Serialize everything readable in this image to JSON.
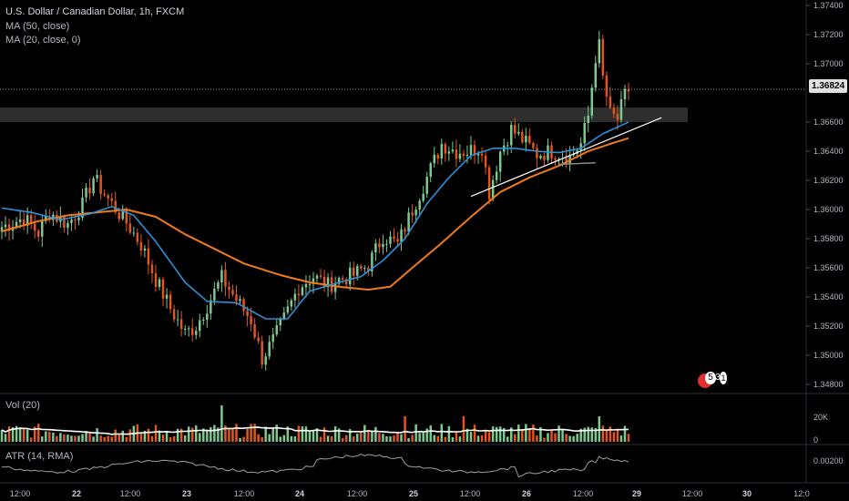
{
  "legend": {
    "title": "U.S. Dollar / Canadian Dollar, 1h, FXCM",
    "ma50": "MA (50, close)",
    "ma20": "MA (20, close, 0)",
    "vol": "Vol (20)",
    "atr": "ATR (14, RMA)"
  },
  "current_price": "1.36824",
  "events_badge": {
    "a": "5",
    "b": "3",
    "c": "1"
  },
  "colors": {
    "up": "#7ec98f",
    "down": "#e5561e",
    "ma20": "#2f8fd8",
    "ma50": "#ef7a18",
    "volume_ma": "#ffffff",
    "atr": "#a0a0a0",
    "zone": "#3a3a3a"
  },
  "chart_data": {
    "type": "candlestick",
    "symbol": "U.S. Dollar / Canadian Dollar",
    "interval": "1h",
    "source": "FXCM",
    "price_ticks": [
      "1.37400",
      "1.37200",
      "1.37000",
      "1.36600",
      "1.36400",
      "1.36200",
      "1.36000",
      "1.35800",
      "1.35600",
      "1.35400",
      "1.35200",
      "1.35000",
      "1.34800"
    ],
    "ylim": [
      1.347,
      1.3745
    ],
    "volume_ticks": [
      "20K",
      "0"
    ],
    "atr_ticks": [
      "0.00200"
    ],
    "x_ticks": [
      {
        "label": "12:00",
        "bold": false
      },
      {
        "label": "22",
        "bold": true
      },
      {
        "label": "12:00",
        "bold": false
      },
      {
        "label": "23",
        "bold": true
      },
      {
        "label": "12:00",
        "bold": false
      },
      {
        "label": "24",
        "bold": true
      },
      {
        "label": "12:00",
        "bold": false
      },
      {
        "label": "25",
        "bold": true
      },
      {
        "label": "12:00",
        "bold": false
      },
      {
        "label": "26",
        "bold": true
      },
      {
        "label": "12:00",
        "bold": false
      },
      {
        "label": "29",
        "bold": true
      },
      {
        "label": "12:00",
        "bold": false
      },
      {
        "label": "30",
        "bold": true
      },
      {
        "label": "12:0",
        "bold": false
      }
    ],
    "close_keypoints": [
      [
        0,
        1.3588
      ],
      [
        6,
        1.3594
      ],
      [
        10,
        1.3584
      ],
      [
        13,
        1.3598
      ],
      [
        18,
        1.359
      ],
      [
        22,
        1.3603
      ],
      [
        25,
        1.3622
      ],
      [
        29,
        1.3607
      ],
      [
        34,
        1.3591
      ],
      [
        38,
        1.3576
      ],
      [
        42,
        1.3552
      ],
      [
        46,
        1.3532
      ],
      [
        50,
        1.3515
      ],
      [
        53,
        1.352
      ],
      [
        56,
        1.3534
      ],
      [
        60,
        1.3553
      ],
      [
        64,
        1.3538
      ],
      [
        68,
        1.3524
      ],
      [
        71,
        1.3498
      ],
      [
        74,
        1.351
      ],
      [
        77,
        1.3525
      ],
      [
        81,
        1.3547
      ],
      [
        85,
        1.3554
      ],
      [
        89,
        1.3548
      ],
      [
        92,
        1.3552
      ],
      [
        96,
        1.3555
      ],
      [
        100,
        1.3562
      ],
      [
        104,
        1.3582
      ],
      [
        108,
        1.3576
      ],
      [
        112,
        1.36
      ],
      [
        116,
        1.3622
      ],
      [
        120,
        1.3645
      ],
      [
        124,
        1.364
      ],
      [
        127,
        1.364
      ],
      [
        131,
        1.3643
      ],
      [
        133,
        1.3612
      ],
      [
        136,
        1.364
      ],
      [
        139,
        1.3655
      ],
      [
        142,
        1.3648
      ],
      [
        146,
        1.3638
      ],
      [
        150,
        1.364
      ],
      [
        155,
        1.3636
      ],
      [
        158,
        1.3645
      ],
      [
        160,
        1.3664
      ],
      [
        162,
        1.3705
      ],
      [
        163,
        1.3712
      ],
      [
        164,
        1.369
      ],
      [
        166,
        1.3665
      ],
      [
        168,
        1.3662
      ],
      [
        170,
        1.3678
      ],
      [
        171,
        1.3682
      ]
    ],
    "ma20_keypoints": [
      [
        0,
        1.3601
      ],
      [
        8,
        1.3598
      ],
      [
        16,
        1.3593
      ],
      [
        24,
        1.3597
      ],
      [
        30,
        1.3602
      ],
      [
        36,
        1.3596
      ],
      [
        42,
        1.3578
      ],
      [
        50,
        1.355
      ],
      [
        56,
        1.3537
      ],
      [
        64,
        1.3536
      ],
      [
        72,
        1.3525
      ],
      [
        78,
        1.3525
      ],
      [
        84,
        1.3544
      ],
      [
        92,
        1.355
      ],
      [
        98,
        1.3554
      ],
      [
        104,
        1.3565
      ],
      [
        110,
        1.358
      ],
      [
        116,
        1.3604
      ],
      [
        122,
        1.3622
      ],
      [
        128,
        1.3637
      ],
      [
        134,
        1.3642
      ],
      [
        140,
        1.3642
      ],
      [
        146,
        1.364
      ],
      [
        152,
        1.3639
      ],
      [
        158,
        1.3642
      ],
      [
        164,
        1.3652
      ],
      [
        171,
        1.366
      ]
    ],
    "ma50_keypoints": [
      [
        0,
        1.3585
      ],
      [
        10,
        1.3592
      ],
      [
        18,
        1.3596
      ],
      [
        26,
        1.3598
      ],
      [
        34,
        1.36
      ],
      [
        42,
        1.3595
      ],
      [
        50,
        1.3583
      ],
      [
        58,
        1.3573
      ],
      [
        66,
        1.3563
      ],
      [
        76,
        1.3555
      ],
      [
        84,
        1.355
      ],
      [
        92,
        1.3547
      ],
      [
        100,
        1.3545
      ],
      [
        106,
        1.3547
      ],
      [
        112,
        1.356
      ],
      [
        120,
        1.3577
      ],
      [
        128,
        1.3595
      ],
      [
        136,
        1.3612
      ],
      [
        144,
        1.3622
      ],
      [
        152,
        1.363
      ],
      [
        160,
        1.364
      ],
      [
        166,
        1.3645
      ],
      [
        171,
        1.3649
      ]
    ],
    "zone": {
      "from": 1.366,
      "to": 1.367
    },
    "trendline": [
      [
        128,
        1.3609
      ],
      [
        180,
        1.3663
      ]
    ],
    "support_segment": [
      [
        152,
        1.3631
      ],
      [
        162,
        1.3632
      ]
    ]
  }
}
